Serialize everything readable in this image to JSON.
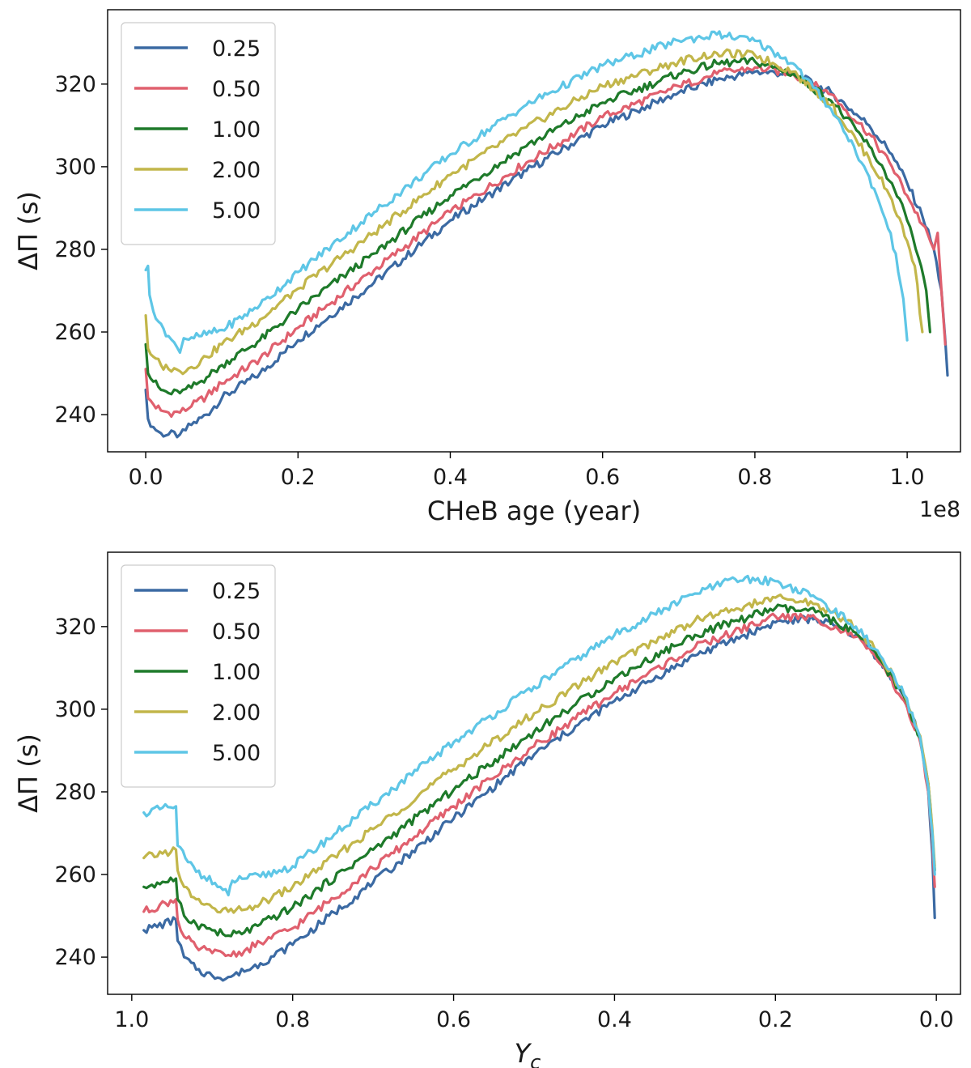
{
  "chart_data": [
    {
      "type": "line",
      "title": "",
      "xlabel": "CHeB age (year)",
      "ylabel": "ΔΠ (s)",
      "x_offset_label": "1e8",
      "xlim": [
        -0.05,
        1.07
      ],
      "ylim": [
        231,
        338
      ],
      "xticks": [
        0.0,
        0.2,
        0.4,
        0.6,
        0.8,
        1.0
      ],
      "xtick_labels": [
        "0.0",
        "0.2",
        "0.4",
        "0.6",
        "0.8",
        "1.0"
      ],
      "yticks": [
        240,
        260,
        280,
        300,
        320
      ],
      "ytick_labels": [
        "240",
        "260",
        "280",
        "300",
        "320"
      ],
      "legend_position": "top-left",
      "series": [
        {
          "name": "0.25",
          "color": "#3b6aa3",
          "points": [
            [
              0.0,
              246
            ],
            [
              0.003,
              239
            ],
            [
              0.01,
              237
            ],
            [
              0.02,
              235.5
            ],
            [
              0.03,
              235.2
            ],
            [
              0.045,
              235.2
            ],
            [
              0.06,
              237.5
            ],
            [
              0.08,
              240
            ],
            [
              0.1,
              244
            ],
            [
              0.15,
              250
            ],
            [
              0.2,
              258
            ],
            [
              0.3,
              272
            ],
            [
              0.4,
              287
            ],
            [
              0.5,
              299
            ],
            [
              0.6,
              310
            ],
            [
              0.7,
              318
            ],
            [
              0.75,
              321
            ],
            [
              0.8,
              323
            ],
            [
              0.85,
              322.5
            ],
            [
              0.9,
              318
            ],
            [
              0.95,
              310
            ],
            [
              0.98,
              303
            ],
            [
              1.0,
              296
            ],
            [
              1.02,
              288
            ],
            [
              1.035,
              280
            ],
            [
              1.045,
              270
            ],
            [
              1.05,
              258
            ],
            [
              1.053,
              249.5
            ]
          ]
        },
        {
          "name": "0.50",
          "color": "#e0606e",
          "points": [
            [
              0.0,
              251
            ],
            [
              0.003,
              244
            ],
            [
              0.01,
              242.5
            ],
            [
              0.02,
              241
            ],
            [
              0.03,
              240.5
            ],
            [
              0.045,
              240.5
            ],
            [
              0.06,
              242
            ],
            [
              0.08,
              244.5
            ],
            [
              0.1,
              247.5
            ],
            [
              0.15,
              253.5
            ],
            [
              0.2,
              261
            ],
            [
              0.3,
              275
            ],
            [
              0.4,
              289
            ],
            [
              0.5,
              301
            ],
            [
              0.6,
              312
            ],
            [
              0.7,
              319.5
            ],
            [
              0.75,
              322.5
            ],
            [
              0.8,
              324
            ],
            [
              0.85,
              322.5
            ],
            [
              0.9,
              317.5
            ],
            [
              0.95,
              308
            ],
            [
              0.98,
              300
            ],
            [
              1.0,
              293
            ],
            [
              1.02,
              286
            ],
            [
              1.035,
              280
            ],
            [
              1.04,
              284
            ],
            [
              1.045,
              270
            ],
            [
              1.05,
              257
            ]
          ]
        },
        {
          "name": "1.00",
          "color": "#1e7a2a",
          "points": [
            [
              0.0,
              257
            ],
            [
              0.003,
              250
            ],
            [
              0.01,
              248
            ],
            [
              0.02,
              246
            ],
            [
              0.03,
              245.2
            ],
            [
              0.045,
              245.2
            ],
            [
              0.06,
              246.5
            ],
            [
              0.08,
              249
            ],
            [
              0.1,
              252
            ],
            [
              0.15,
              258
            ],
            [
              0.2,
              265.5
            ],
            [
              0.3,
              279
            ],
            [
              0.4,
              293
            ],
            [
              0.5,
              305
            ],
            [
              0.6,
              315.5
            ],
            [
              0.7,
              322.5
            ],
            [
              0.75,
              325
            ],
            [
              0.8,
              325.5
            ],
            [
              0.85,
              322.5
            ],
            [
              0.9,
              316
            ],
            [
              0.95,
              305
            ],
            [
              0.98,
              296
            ],
            [
              1.0,
              287
            ],
            [
              1.015,
              278
            ],
            [
              1.025,
              270
            ],
            [
              1.03,
              260
            ]
          ]
        },
        {
          "name": "2.00",
          "color": "#c2b64a",
          "points": [
            [
              0.0,
              264
            ],
            [
              0.003,
              256
            ],
            [
              0.01,
              254
            ],
            [
              0.02,
              252
            ],
            [
              0.03,
              251
            ],
            [
              0.045,
              250.5
            ],
            [
              0.06,
              251.5
            ],
            [
              0.08,
              254
            ],
            [
              0.1,
              257
            ],
            [
              0.15,
              263
            ],
            [
              0.2,
              270.5
            ],
            [
              0.3,
              284
            ],
            [
              0.4,
              298
            ],
            [
              0.5,
              309.5
            ],
            [
              0.6,
              319.5
            ],
            [
              0.7,
              325.5
            ],
            [
              0.75,
              327.5
            ],
            [
              0.8,
              327
            ],
            [
              0.85,
              323
            ],
            [
              0.9,
              315
            ],
            [
              0.95,
              302
            ],
            [
              0.98,
              292
            ],
            [
              1.0,
              282
            ],
            [
              1.01,
              276
            ],
            [
              1.02,
              260
            ]
          ]
        },
        {
          "name": "5.00",
          "color": "#5ec6e6",
          "points": [
            [
              0.0,
              275
            ],
            [
              0.003,
              276
            ],
            [
              0.005,
              269
            ],
            [
              0.01,
              265
            ],
            [
              0.02,
              262
            ],
            [
              0.03,
              259
            ],
            [
              0.045,
              255
            ],
            [
              0.05,
              258.5
            ],
            [
              0.07,
              259
            ],
            [
              0.1,
              260.5
            ],
            [
              0.15,
              266.5
            ],
            [
              0.2,
              274.5
            ],
            [
              0.3,
              289
            ],
            [
              0.4,
              303
            ],
            [
              0.5,
              315
            ],
            [
              0.6,
              324.5
            ],
            [
              0.7,
              330.5
            ],
            [
              0.75,
              332
            ],
            [
              0.8,
              330.5
            ],
            [
              0.85,
              325
            ],
            [
              0.9,
              314
            ],
            [
              0.93,
              305
            ],
            [
              0.96,
              293
            ],
            [
              0.975,
              285
            ],
            [
              0.985,
              279
            ],
            [
              0.995,
              268
            ],
            [
              1.0,
              258
            ]
          ]
        }
      ]
    },
    {
      "type": "line",
      "title": "",
      "xlabel": "Y_c",
      "ylabel": "ΔΠ (s)",
      "xlim": [
        1.03,
        -0.03
      ],
      "ylim": [
        231,
        338
      ],
      "xticks": [
        1.0,
        0.8,
        0.6,
        0.4,
        0.2,
        0.0
      ],
      "xtick_labels": [
        "1.0",
        "0.8",
        "0.6",
        "0.4",
        "0.2",
        "0.0"
      ],
      "yticks": [
        240,
        260,
        280,
        300,
        320
      ],
      "ytick_labels": [
        "240",
        "260",
        "280",
        "300",
        "320"
      ],
      "legend_position": "top-left",
      "series": [
        {
          "name": "0.25",
          "color": "#3b6aa3",
          "points": [
            [
              0.985,
              246.5
            ],
            [
              0.945,
              249
            ],
            [
              0.943,
              244
            ],
            [
              0.935,
              240
            ],
            [
              0.92,
              237
            ],
            [
              0.9,
              235.5
            ],
            [
              0.88,
              235.2
            ],
            [
              0.86,
              236.5
            ],
            [
              0.84,
              238.5
            ],
            [
              0.8,
              243
            ],
            [
              0.7,
              258
            ],
            [
              0.6,
              273.5
            ],
            [
              0.5,
              289
            ],
            [
              0.4,
              302
            ],
            [
              0.3,
              313
            ],
            [
              0.2,
              321
            ],
            [
              0.15,
              322
            ],
            [
              0.1,
              318
            ],
            [
              0.07,
              312
            ],
            [
              0.04,
              303
            ],
            [
              0.02,
              293
            ],
            [
              0.01,
              280
            ],
            [
              0.005,
              265
            ],
            [
              0.002,
              249.5
            ]
          ]
        },
        {
          "name": "0.50",
          "color": "#e0606e",
          "points": [
            [
              0.985,
              251
            ],
            [
              0.945,
              254
            ],
            [
              0.943,
              249
            ],
            [
              0.935,
              245
            ],
            [
              0.92,
              242.5
            ],
            [
              0.9,
              241
            ],
            [
              0.88,
              240.5
            ],
            [
              0.86,
              241.5
            ],
            [
              0.84,
              243.5
            ],
            [
              0.8,
              247
            ],
            [
              0.7,
              261.5
            ],
            [
              0.6,
              276.5
            ],
            [
              0.5,
              291
            ],
            [
              0.4,
              304
            ],
            [
              0.3,
              315
            ],
            [
              0.2,
              322.5
            ],
            [
              0.15,
              322
            ],
            [
              0.1,
              317.5
            ],
            [
              0.07,
              311
            ],
            [
              0.04,
              302
            ],
            [
              0.02,
              292
            ],
            [
              0.01,
              280
            ],
            [
              0.005,
              268
            ],
            [
              0.002,
              257
            ]
          ]
        },
        {
          "name": "1.00",
          "color": "#1e7a2a",
          "points": [
            [
              0.985,
              257
            ],
            [
              0.945,
              259
            ],
            [
              0.943,
              254
            ],
            [
              0.935,
              250
            ],
            [
              0.92,
              248
            ],
            [
              0.9,
              246.5
            ],
            [
              0.88,
              245.2
            ],
            [
              0.86,
              246
            ],
            [
              0.84,
              248
            ],
            [
              0.8,
              252
            ],
            [
              0.7,
              266
            ],
            [
              0.6,
              280.5
            ],
            [
              0.5,
              294.5
            ],
            [
              0.4,
              307.5
            ],
            [
              0.3,
              318
            ],
            [
              0.2,
              324.5
            ],
            [
              0.15,
              323.5
            ],
            [
              0.1,
              318.5
            ],
            [
              0.07,
              312
            ],
            [
              0.04,
              303
            ],
            [
              0.02,
              293
            ],
            [
              0.01,
              282
            ],
            [
              0.005,
              270
            ],
            [
              0.002,
              261
            ]
          ]
        },
        {
          "name": "2.00",
          "color": "#c2b64a",
          "points": [
            [
              0.985,
              264
            ],
            [
              0.945,
              266
            ],
            [
              0.943,
              261
            ],
            [
              0.935,
              257
            ],
            [
              0.92,
              254
            ],
            [
              0.9,
              252
            ],
            [
              0.88,
              251
            ],
            [
              0.86,
              251.5
            ],
            [
              0.84,
              253
            ],
            [
              0.8,
              257
            ],
            [
              0.7,
              271
            ],
            [
              0.6,
              285.5
            ],
            [
              0.5,
              299
            ],
            [
              0.4,
              311.5
            ],
            [
              0.3,
              321.5
            ],
            [
              0.2,
              327
            ],
            [
              0.15,
              325.5
            ],
            [
              0.1,
              320
            ],
            [
              0.07,
              313
            ],
            [
              0.04,
              303.5
            ],
            [
              0.02,
              293.5
            ],
            [
              0.01,
              282
            ],
            [
              0.005,
              271
            ],
            [
              0.002,
              262
            ]
          ]
        },
        {
          "name": "5.00",
          "color": "#5ec6e6",
          "points": [
            [
              0.985,
              275
            ],
            [
              0.945,
              276.5
            ],
            [
              0.943,
              267
            ],
            [
              0.93,
              263
            ],
            [
              0.91,
              259.5
            ],
            [
              0.89,
              257
            ],
            [
              0.88,
              255
            ],
            [
              0.875,
              258.5
            ],
            [
              0.86,
              259
            ],
            [
              0.84,
              259.5
            ],
            [
              0.8,
              262
            ],
            [
              0.7,
              277
            ],
            [
              0.6,
              292
            ],
            [
              0.5,
              305.5
            ],
            [
              0.4,
              318
            ],
            [
              0.3,
              328
            ],
            [
              0.25,
              331.5
            ],
            [
              0.2,
              331
            ],
            [
              0.15,
              327
            ],
            [
              0.1,
              320
            ],
            [
              0.07,
              313
            ],
            [
              0.04,
              303.5
            ],
            [
              0.02,
              293
            ],
            [
              0.01,
              281
            ],
            [
              0.005,
              270
            ],
            [
              0.002,
              260
            ]
          ]
        }
      ]
    }
  ]
}
